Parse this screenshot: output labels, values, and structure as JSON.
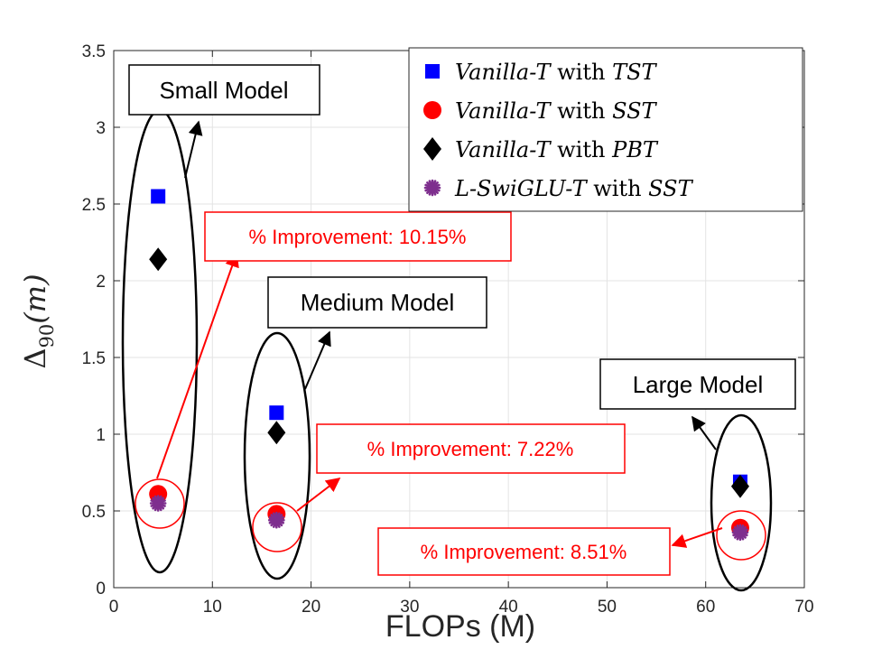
{
  "chart_data": {
    "type": "scatter",
    "xlabel": "FLOPs (M)",
    "ylabel_main": "Δ",
    "ylabel_sub": "90",
    "ylabel_arg": "(m)",
    "xlim": [
      0,
      70
    ],
    "ylim": [
      0,
      3.5
    ],
    "xticks": [
      0,
      10,
      20,
      30,
      40,
      50,
      60,
      70
    ],
    "yticks": [
      0,
      0.5,
      1,
      1.5,
      2,
      2.5,
      3,
      3.5
    ],
    "xtick_labels": [
      "0",
      "10",
      "20",
      "30",
      "40",
      "50",
      "60",
      "70"
    ],
    "ytick_labels": [
      "0",
      "0.5",
      "1",
      "1.5",
      "2",
      "2.5",
      "3",
      "3.5"
    ],
    "grid": true,
    "legend_position": "top-right",
    "series": [
      {
        "name_model": "Vanilla-T",
        "name_with": " with ",
        "name_method": "TST",
        "marker": "square",
        "color": "#0000ff",
        "x": [
          4.5,
          16.5,
          63.5
        ],
        "y": [
          2.55,
          1.14,
          0.69
        ]
      },
      {
        "name_model": "Vanilla-T",
        "name_with": " with ",
        "name_method": "SST",
        "marker": "circle",
        "color": "#ff0000",
        "x": [
          4.5,
          16.5,
          63.5
        ],
        "y": [
          0.61,
          0.48,
          0.39
        ]
      },
      {
        "name_model": "Vanilla-T",
        "name_with": " with ",
        "name_method": "PBT",
        "marker": "diamond",
        "color": "#000000",
        "x": [
          4.5,
          16.5,
          63.5
        ],
        "y": [
          2.14,
          1.01,
          0.66
        ]
      },
      {
        "name_model": "L-SwiGLU-T",
        "name_with": " with ",
        "name_method": "SST",
        "marker": "asterisk",
        "color": "#7e2f8e",
        "x": [
          4.5,
          16.5,
          63.5
        ],
        "y": [
          0.55,
          0.44,
          0.36
        ]
      }
    ],
    "groups": [
      {
        "label": "Small Model",
        "improvement": "% Improvement: 10.15%"
      },
      {
        "label": "Medium Model",
        "improvement": "% Improvement: 7.22%"
      },
      {
        "label": "Large Model",
        "improvement": "% Improvement: 8.51%"
      }
    ]
  }
}
